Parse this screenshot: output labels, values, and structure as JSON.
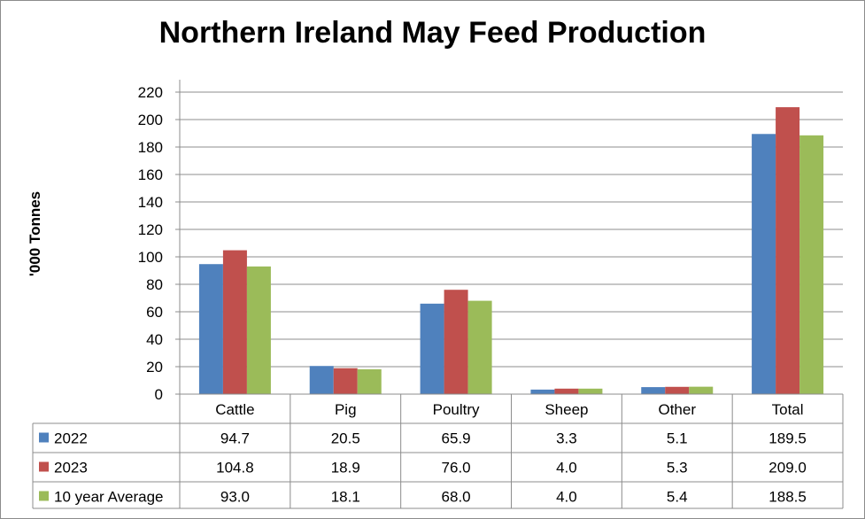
{
  "chart_data": {
    "type": "bar",
    "title": "Northern Ireland May Feed Production",
    "ylabel": "'000 Tonnes",
    "xlabel": "",
    "ylim": [
      0,
      220
    ],
    "yticks": [
      0,
      20,
      40,
      60,
      80,
      100,
      120,
      140,
      160,
      180,
      200,
      220
    ],
    "grid": true,
    "legend": "data-table-left",
    "categories": [
      "Cattle",
      "Pig",
      "Poultry",
      "Sheep",
      "Other",
      "Total"
    ],
    "series": [
      {
        "name": "2022",
        "color": "#4f81bd",
        "values": [
          94.7,
          20.5,
          65.9,
          3.3,
          5.1,
          189.5
        ],
        "labels": [
          "94.7",
          "20.5",
          "65.9",
          "3.3",
          "5.1",
          "189.5"
        ]
      },
      {
        "name": "2023",
        "color": "#c0504d",
        "values": [
          104.8,
          18.9,
          76.0,
          4.0,
          5.3,
          209.0
        ],
        "labels": [
          "104.8",
          "18.9",
          "76.0",
          "4.0",
          "5.3",
          "209.0"
        ]
      },
      {
        "name": "10 year Average",
        "color": "#9bbb59",
        "values": [
          93.0,
          18.1,
          68.0,
          4.0,
          5.4,
          188.5
        ],
        "labels": [
          "93.0",
          "18.1",
          "68.0",
          "4.0",
          "5.4",
          "188.5"
        ]
      }
    ]
  }
}
